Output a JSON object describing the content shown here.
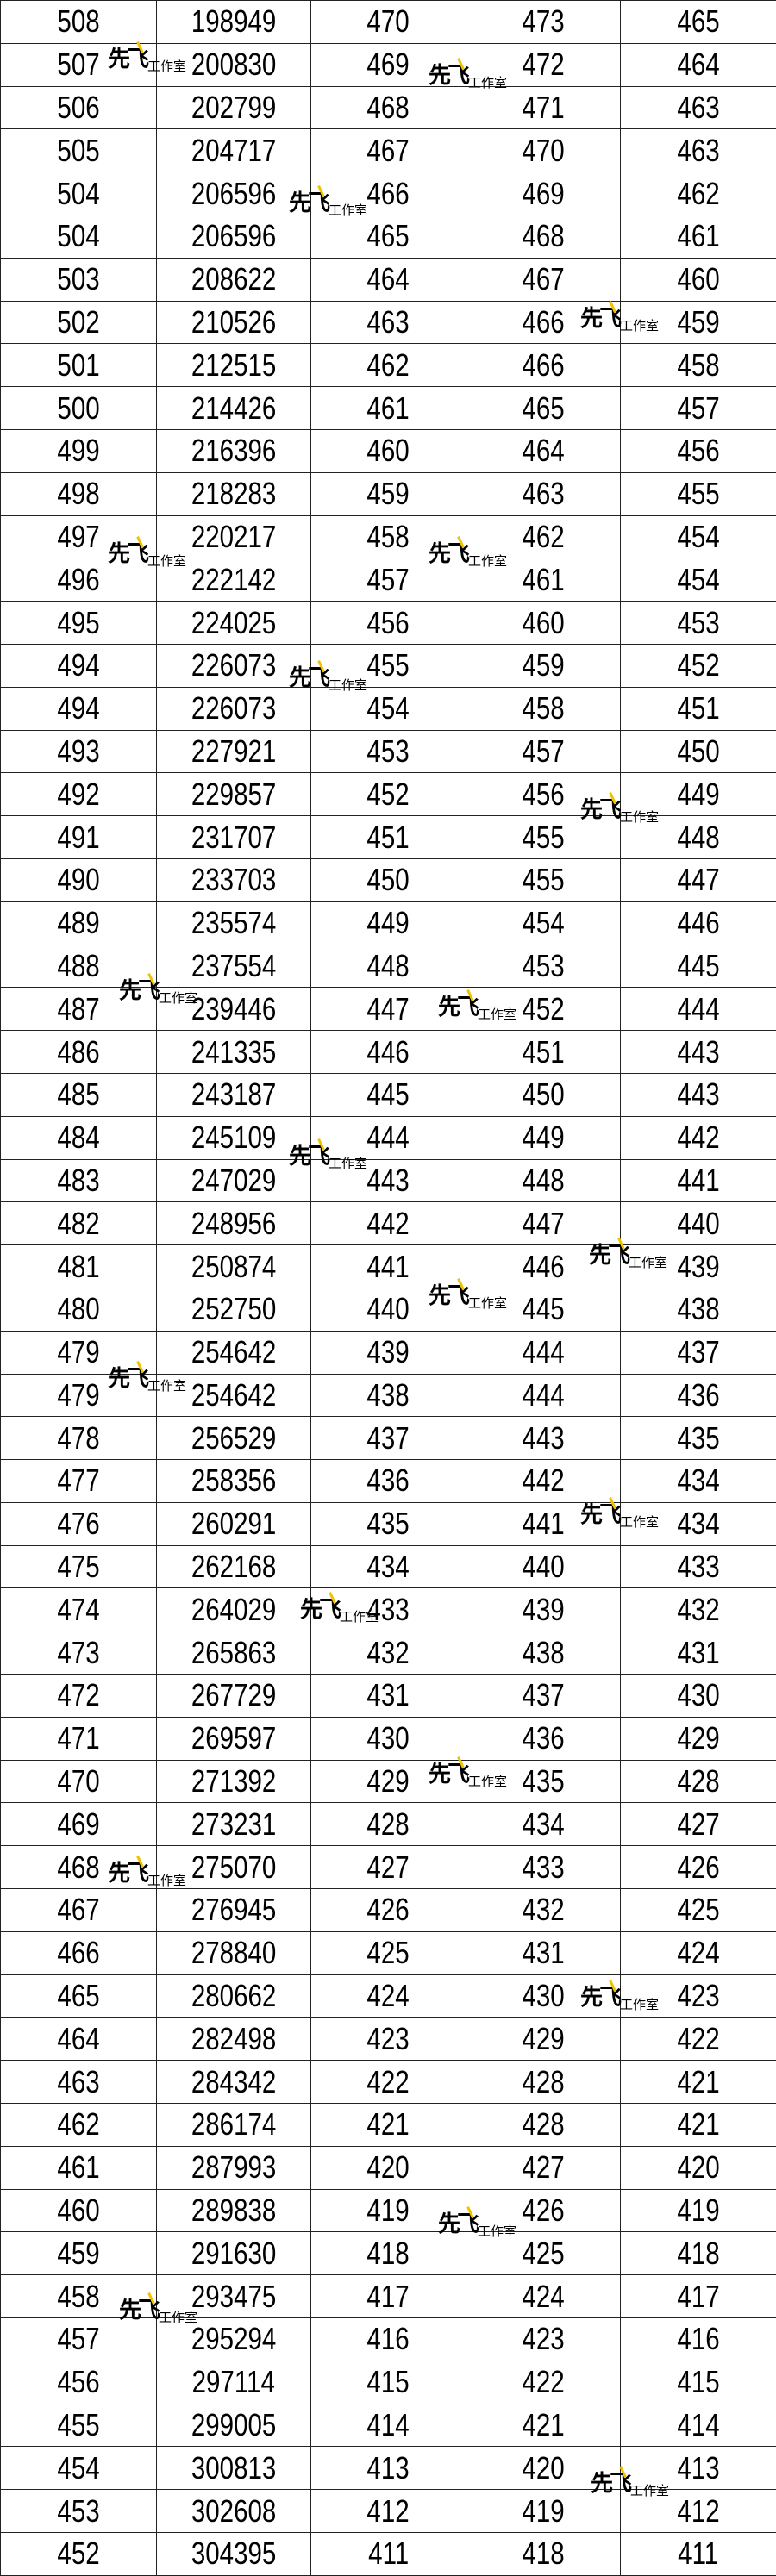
{
  "table": {
    "rows": [
      [
        "508",
        "198949",
        "470",
        "473",
        "465"
      ],
      [
        "507",
        "200830",
        "469",
        "472",
        "464"
      ],
      [
        "506",
        "202799",
        "468",
        "471",
        "463"
      ],
      [
        "505",
        "204717",
        "467",
        "470",
        "463"
      ],
      [
        "504",
        "206596",
        "466",
        "469",
        "462"
      ],
      [
        "504",
        "206596",
        "465",
        "468",
        "461"
      ],
      [
        "503",
        "208622",
        "464",
        "467",
        "460"
      ],
      [
        "502",
        "210526",
        "463",
        "466",
        "459"
      ],
      [
        "501",
        "212515",
        "462",
        "466",
        "458"
      ],
      [
        "500",
        "214426",
        "461",
        "465",
        "457"
      ],
      [
        "499",
        "216396",
        "460",
        "464",
        "456"
      ],
      [
        "498",
        "218283",
        "459",
        "463",
        "455"
      ],
      [
        "497",
        "220217",
        "458",
        "462",
        "454"
      ],
      [
        "496",
        "222142",
        "457",
        "461",
        "454"
      ],
      [
        "495",
        "224025",
        "456",
        "460",
        "453"
      ],
      [
        "494",
        "226073",
        "455",
        "459",
        "452"
      ],
      [
        "494",
        "226073",
        "454",
        "458",
        "451"
      ],
      [
        "493",
        "227921",
        "453",
        "457",
        "450"
      ],
      [
        "492",
        "229857",
        "452",
        "456",
        "449"
      ],
      [
        "491",
        "231707",
        "451",
        "455",
        "448"
      ],
      [
        "490",
        "233703",
        "450",
        "455",
        "447"
      ],
      [
        "489",
        "235574",
        "449",
        "454",
        "446"
      ],
      [
        "488",
        "237554",
        "448",
        "453",
        "445"
      ],
      [
        "487",
        "239446",
        "447",
        "452",
        "444"
      ],
      [
        "486",
        "241335",
        "446",
        "451",
        "443"
      ],
      [
        "485",
        "243187",
        "445",
        "450",
        "443"
      ],
      [
        "484",
        "245109",
        "444",
        "449",
        "442"
      ],
      [
        "483",
        "247029",
        "443",
        "448",
        "441"
      ],
      [
        "482",
        "248956",
        "442",
        "447",
        "440"
      ],
      [
        "481",
        "250874",
        "441",
        "446",
        "439"
      ],
      [
        "480",
        "252750",
        "440",
        "445",
        "438"
      ],
      [
        "479",
        "254642",
        "439",
        "444",
        "437"
      ],
      [
        "479",
        "254642",
        "438",
        "444",
        "436"
      ],
      [
        "478",
        "256529",
        "437",
        "443",
        "435"
      ],
      [
        "477",
        "258356",
        "436",
        "442",
        "434"
      ],
      [
        "476",
        "260291",
        "435",
        "441",
        "434"
      ],
      [
        "475",
        "262168",
        "434",
        "440",
        "433"
      ],
      [
        "474",
        "264029",
        "433",
        "439",
        "432"
      ],
      [
        "473",
        "265863",
        "432",
        "438",
        "431"
      ],
      [
        "472",
        "267729",
        "431",
        "437",
        "430"
      ],
      [
        "471",
        "269597",
        "430",
        "436",
        "429"
      ],
      [
        "470",
        "271392",
        "429",
        "435",
        "428"
      ],
      [
        "469",
        "273231",
        "428",
        "434",
        "427"
      ],
      [
        "468",
        "275070",
        "427",
        "433",
        "426"
      ],
      [
        "467",
        "276945",
        "426",
        "432",
        "425"
      ],
      [
        "466",
        "278840",
        "425",
        "431",
        "424"
      ],
      [
        "465",
        "280662",
        "424",
        "430",
        "423"
      ],
      [
        "464",
        "282498",
        "423",
        "429",
        "422"
      ],
      [
        "463",
        "284342",
        "422",
        "428",
        "421"
      ],
      [
        "462",
        "286174",
        "421",
        "428",
        "421"
      ],
      [
        "461",
        "287993",
        "420",
        "427",
        "420"
      ],
      [
        "460",
        "289838",
        "419",
        "426",
        "419"
      ],
      [
        "459",
        "291630",
        "418",
        "425",
        "418"
      ],
      [
        "458",
        "293475",
        "417",
        "424",
        "417"
      ],
      [
        "457",
        "295294",
        "416",
        "423",
        "416"
      ],
      [
        "456",
        "297114",
        "415",
        "422",
        "415"
      ],
      [
        "455",
        "299005",
        "414",
        "421",
        "414"
      ],
      [
        "454",
        "300813",
        "413",
        "420",
        "413"
      ],
      [
        "453",
        "302608",
        "412",
        "419",
        "412"
      ],
      [
        "452",
        "304395",
        "411",
        "418",
        "411"
      ]
    ]
  },
  "watermark": {
    "brand": "先飞",
    "studio": "工作室",
    "accent_color": "#f2c200"
  }
}
